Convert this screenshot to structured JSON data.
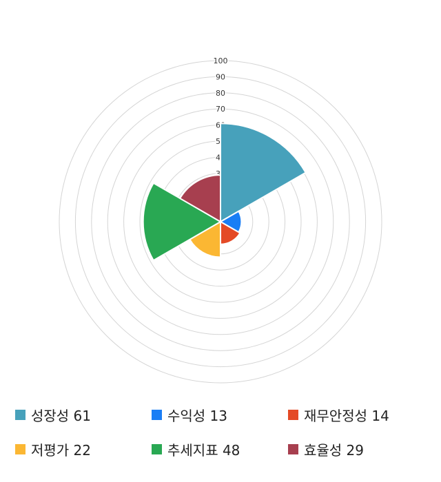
{
  "chart_data": {
    "type": "polar-area",
    "categories": [
      "성장성",
      "수익성",
      "재무안정성",
      "저평가",
      "추세지표",
      "효율성"
    ],
    "values": [
      61,
      13,
      14,
      22,
      48,
      29
    ],
    "colors": [
      "#47a1bb",
      "#1a7ef5",
      "#e44a26",
      "#fbb733",
      "#29a853",
      "#a73f4f"
    ],
    "rlim": [
      0,
      100
    ],
    "ticks": [
      10,
      20,
      30,
      40,
      50,
      60,
      70,
      80,
      90,
      100
    ],
    "grid": true,
    "legend_position": "bottom"
  },
  "legend": [
    {
      "label": "성장성 61"
    },
    {
      "label": "수익성 13"
    },
    {
      "label": "재무안정성 14"
    },
    {
      "label": "저평가 22"
    },
    {
      "label": "추세지표 48"
    },
    {
      "label": "효율성 29"
    }
  ]
}
